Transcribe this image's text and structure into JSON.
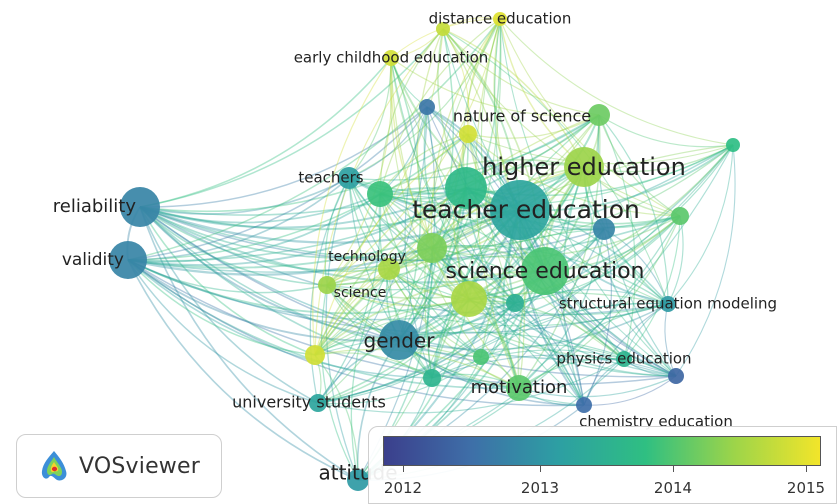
{
  "app": {
    "name": "VOSviewer"
  },
  "legend": {
    "ticks": [
      "2012",
      "2013",
      "2014",
      "2015"
    ],
    "gradient": [
      "#3b3f8c",
      "#3e6fa8",
      "#2d9fa3",
      "#2fbf82",
      "#9bd44a",
      "#f2e52a"
    ]
  },
  "network": {
    "nodes": [
      {
        "id": "reliability",
        "label": "reliability",
        "year": 2012.8
      },
      {
        "id": "validity",
        "label": "validity",
        "year": 2012.8
      },
      {
        "id": "teachers",
        "label": "teachers",
        "year": 2013.2
      },
      {
        "id": "technology",
        "label": "technology",
        "year": 2014.6
      },
      {
        "id": "science",
        "label": "science",
        "year": 2014.5
      },
      {
        "id": "gender",
        "label": "gender",
        "year": 2012.9
      },
      {
        "id": "university-students",
        "label": "university students",
        "year": 2013.3
      },
      {
        "id": "attitude",
        "label": "attitude",
        "year": 2013.1
      },
      {
        "id": "distance-education",
        "label": "distance education",
        "year": 2015.0
      },
      {
        "id": "early-childhood-education",
        "label": "early childhood education",
        "year": 2014.9
      },
      {
        "id": "nature-of-science",
        "label": "nature of science",
        "year": 2014.9
      },
      {
        "id": "higher-education",
        "label": "higher education",
        "year": 2014.5
      },
      {
        "id": "teacher-education",
        "label": "teacher education",
        "year": 2013.3
      },
      {
        "id": "science-education",
        "label": "science education",
        "year": 2014.0
      },
      {
        "id": "structural-equation-modeling",
        "label": "structural equation modeling",
        "year": 2013.1
      },
      {
        "id": "physics-education",
        "label": "physics education",
        "year": 2013.6
      },
      {
        "id": "motivation",
        "label": "motivation",
        "year": 2014.1
      },
      {
        "id": "chemistry-education",
        "label": "chemistry education",
        "year": 2012.5
      },
      {
        "id": "n1",
        "label": "",
        "year": 2014.8
      },
      {
        "id": "n2",
        "label": "",
        "year": 2013.9
      },
      {
        "id": "n3",
        "label": "",
        "year": 2014.3
      },
      {
        "id": "n4",
        "label": "",
        "year": 2013.7
      },
      {
        "id": "n5",
        "label": "",
        "year": 2012.6
      },
      {
        "id": "n6",
        "label": "",
        "year": 2014.6
      },
      {
        "id": "n7",
        "label": "",
        "year": 2013.5
      },
      {
        "id": "n8",
        "label": "",
        "year": 2014.2
      },
      {
        "id": "n9",
        "label": "",
        "year": 2012.4
      },
      {
        "id": "n10",
        "label": "",
        "year": 2013.8
      },
      {
        "id": "n11",
        "label": "",
        "year": 2014.1
      },
      {
        "id": "n12",
        "label": "",
        "year": 2012.8
      },
      {
        "id": "n13",
        "label": "",
        "year": 2014.0
      },
      {
        "id": "n14",
        "label": "",
        "year": 2013.6
      },
      {
        "id": "n15",
        "label": "",
        "year": 2014.9
      }
    ]
  }
}
